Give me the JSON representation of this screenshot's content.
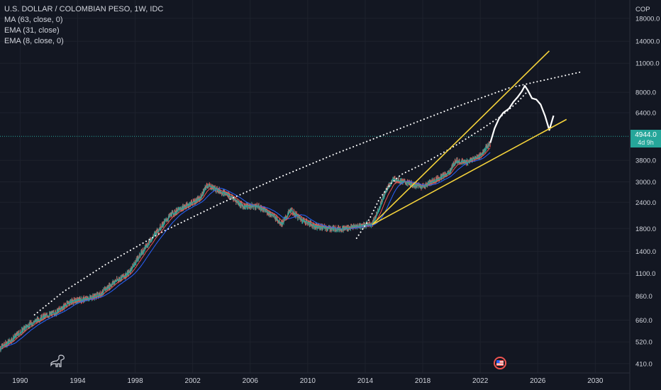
{
  "legend": {
    "title": "U.S. DOLLAR / COLOMBIAN PESO, 1W, IDC",
    "ma": "MA (63, close, 0)",
    "ema31": "EMA (31, close)",
    "ema8": "EMA (8, close, 0)"
  },
  "currency_label": "COP",
  "last_price": {
    "value": "4944.0",
    "countdown": "4d 9h"
  },
  "colors": {
    "background": "#131722",
    "up": "#26a69a",
    "down": "#ef5350",
    "ma": "#2962ff",
    "trendline": "#f5d33b",
    "projection": "#ffffff",
    "grid": "#1e222d"
  },
  "icons": [
    "dinosaur-logo-icon",
    "us-flag-event-icon"
  ],
  "chart_data": {
    "type": "line",
    "y_scale": "log",
    "ylim": [
      370,
      22000
    ],
    "xlim": [
      1988.6,
      2032.4
    ],
    "y_ticks": [
      "410.0",
      "520.0",
      "660.0",
      "860.0",
      "1100.0",
      "1400.0",
      "1800.0",
      "2400.0",
      "3000.0",
      "3800.0",
      "4944.0",
      "6400.0",
      "8000.0",
      "11000.0",
      "14000.0",
      "18000.0"
    ],
    "x_ticks": [
      "1990",
      "1994",
      "1998",
      "2002",
      "2006",
      "2010",
      "2014",
      "2018",
      "2022",
      "2026",
      "2030"
    ],
    "x_tick_values": [
      1990,
      1994,
      1998,
      2002,
      2006,
      2010,
      2014,
      2018,
      2022,
      2026,
      2030
    ],
    "series": [
      {
        "name": "",
        "x": [
          1988.5,
          1989.5,
          1990.5,
          1991.5,
          1992.5,
          1993.5,
          1994.5,
          1995.5,
          1996.5,
          1997.5,
          1998.5,
          1999.5,
          2000.5,
          2001.5,
          2002.5,
          2003.0,
          2003.5,
          2004.5,
          2005.5,
          2006.5,
          2007.5,
          2008.2,
          2008.8,
          2009.5,
          2010.5,
          2011.5,
          2012.5,
          2013.5,
          2014.5,
          2015.0,
          2015.5,
          2016.0,
          2017.0,
          2018.0,
          2019.0,
          2019.8,
          2020.3,
          2021.0,
          2022.0,
          2022.7
        ],
        "y": [
          480,
          540,
          620,
          680,
          720,
          810,
          830,
          870,
          1000,
          1100,
          1400,
          1750,
          2100,
          2300,
          2500,
          2900,
          2800,
          2600,
          2300,
          2300,
          2100,
          1900,
          2200,
          2000,
          1850,
          1800,
          1800,
          1850,
          1900,
          2300,
          2800,
          3100,
          2950,
          2850,
          3100,
          3300,
          3800,
          3700,
          4000,
          4600
        ]
      },
      {
        "name": "",
        "x": [
          2022.7,
          2023.0,
          2023.3,
          2023.6,
          2024.0,
          2024.3,
          2024.6,
          2024.9,
          2025.1,
          2025.3,
          2025.6,
          2025.9,
          2026.2,
          2026.5,
          2026.8,
          2027.1
        ],
        "y": [
          4600,
          5400,
          6000,
          6400,
          6700,
          7200,
          7600,
          8100,
          8600,
          8200,
          7500,
          7400,
          7000,
          6200,
          5300,
          6200
        ]
      },
      {
        "name": "",
        "x": [
          1991.0,
          1993,
          1996,
          2000,
          2004,
          2008,
          2012,
          2016,
          2020,
          2024,
          2029.0
        ],
        "y": [
          700,
          900,
          1220,
          1750,
          2380,
          3150,
          4100,
          5250,
          6700,
          8400,
          10000
        ]
      },
      {
        "name": "",
        "x": [
          2013.4,
          2014.3,
          2015.0,
          2015.8,
          2016.5,
          2018,
          2020,
          2022,
          2023.5,
          2024.6,
          2025.3
        ],
        "y": [
          1620,
          2000,
          2500,
          2950,
          3250,
          3650,
          4350,
          5300,
          6200,
          7200,
          8100
        ]
      }
    ],
    "trendlines": [
      {
        "x": [
          2014.5,
          2026.8
        ],
        "y": [
          1880,
          12600
        ]
      },
      {
        "x": [
          2014.5,
          2028.0
        ],
        "y": [
          1880,
          5950
        ]
      }
    ]
  }
}
